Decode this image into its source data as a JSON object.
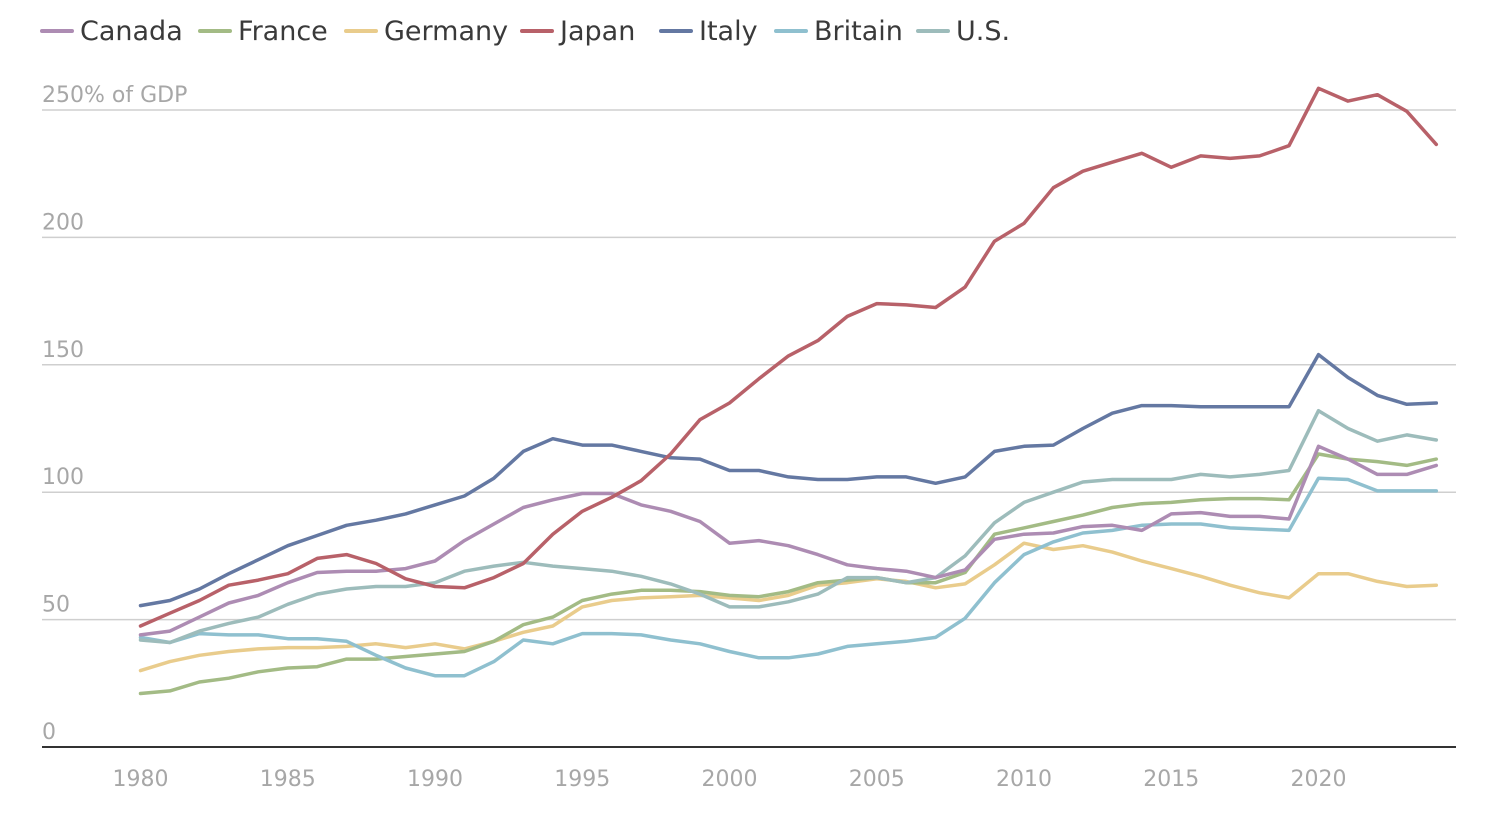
{
  "chart_data": {
    "type": "line",
    "title": "",
    "xlabel": "",
    "ylabel": "% of GDP",
    "y_unit_label": "250% of GDP",
    "xlim": [
      1977,
      2025
    ],
    "ylim": [
      0,
      250
    ],
    "x_ticks": [
      1980,
      1985,
      1990,
      1995,
      2000,
      2005,
      2010,
      2015,
      2020
    ],
    "x_tick_labels": [
      "1980",
      "1985",
      "1990",
      "1995",
      "2000",
      "2005",
      "2010",
      "2015",
      "2020"
    ],
    "y_ticks": [
      0,
      50,
      100,
      150,
      200,
      250
    ],
    "y_tick_labels": [
      "0",
      "50",
      "100",
      "150",
      "200",
      "250% of GDP"
    ],
    "grid": true,
    "legend_position": "top-left",
    "x": [
      1980,
      1981,
      1982,
      1983,
      1984,
      1985,
      1986,
      1987,
      1988,
      1989,
      1990,
      1991,
      1992,
      1993,
      1994,
      1995,
      1996,
      1997,
      1998,
      1999,
      2000,
      2001,
      2002,
      2003,
      2004,
      2005,
      2006,
      2007,
      2008,
      2009,
      2010,
      2011,
      2012,
      2013,
      2014,
      2015,
      2016,
      2017,
      2018,
      2019,
      2020,
      2021,
      2022,
      2023,
      2024
    ],
    "series": [
      {
        "name": "Canada",
        "color": "#ad8cb3",
        "values": [
          44,
          45.5,
          51,
          56.5,
          59.5,
          64.5,
          68.5,
          69,
          69,
          70,
          73,
          81,
          87.5,
          94,
          97,
          99.5,
          99.5,
          95,
          92.5,
          88.5,
          80,
          81,
          79,
          75.5,
          71.5,
          70,
          69,
          66.5,
          69.5,
          81.5,
          83.5,
          84,
          86.5,
          87,
          85,
          91.5,
          92,
          90.5,
          90.5,
          89.5,
          118,
          113,
          107,
          107,
          110.5
        ]
      },
      {
        "name": "France",
        "color": "#a3bb85",
        "values": [
          21,
          22,
          25.5,
          27,
          29.5,
          31,
          31.5,
          34.5,
          34.5,
          35.5,
          36.5,
          37.5,
          41.5,
          48,
          51,
          57.5,
          60,
          61.5,
          61.5,
          61,
          59.5,
          59,
          61,
          64.5,
          65.5,
          66.5,
          64.5,
          64.5,
          68.5,
          83.5,
          86,
          88.5,
          91,
          94,
          95.5,
          96,
          97,
          97.5,
          97.5,
          97,
          115,
          113,
          112,
          110.5,
          113
        ]
      },
      {
        "name": "Germany",
        "color": "#e9cc8c",
        "values": [
          30,
          33.5,
          36,
          37.5,
          38.5,
          39,
          39,
          39.5,
          40.5,
          39,
          40.5,
          38.5,
          41.5,
          45,
          47.5,
          55,
          57.5,
          58.5,
          59,
          59.5,
          58.5,
          57.5,
          59.5,
          63.5,
          64.5,
          66,
          65,
          62.5,
          64,
          71.5,
          80,
          77.5,
          79,
          76.5,
          73,
          70,
          67,
          63.5,
          60.5,
          58.5,
          68,
          68,
          65,
          63,
          63.5
        ]
      },
      {
        "name": "Japan",
        "color": "#b86169",
        "values": [
          47.5,
          52.5,
          57.5,
          63.5,
          65.5,
          68,
          74,
          75.5,
          72,
          66,
          63,
          62.5,
          66.5,
          72,
          83.5,
          92.5,
          98,
          104.5,
          115,
          128.5,
          135,
          144.5,
          153.5,
          159.5,
          169,
          174,
          173.5,
          172.5,
          180.5,
          198.5,
          205.5,
          219.5,
          226,
          229.5,
          233,
          227.5,
          232,
          231,
          232,
          236,
          258.5,
          253.5,
          256,
          249.5,
          236.5
        ]
      },
      {
        "name": "Italy",
        "color": "#6478a2",
        "values": [
          55.5,
          57.5,
          62,
          68,
          73.5,
          79,
          83,
          87,
          89,
          91.5,
          95,
          98.5,
          105.5,
          116,
          121,
          118.5,
          118.5,
          116,
          113.5,
          113,
          108.5,
          108.5,
          106,
          105,
          105,
          106,
          106,
          103.5,
          106,
          116,
          118,
          118.5,
          125,
          131,
          134,
          134,
          133.5,
          133.5,
          133.5,
          133.5,
          154,
          145,
          138,
          134.5,
          135
        ]
      },
      {
        "name": "Britain",
        "color": "#8fc0cf",
        "values": [
          43,
          41,
          44.5,
          44,
          44,
          42.5,
          42.5,
          41.5,
          36,
          31,
          28,
          28,
          33.5,
          42,
          40.5,
          44.5,
          44.5,
          44,
          42,
          40.5,
          37.5,
          35,
          35,
          36.5,
          39.5,
          40.5,
          41.5,
          43,
          50.5,
          64.5,
          75.5,
          80.5,
          84,
          85,
          87,
          87.5,
          87.5,
          86,
          85.5,
          85,
          105.5,
          105,
          100.5,
          100.5,
          100.5
        ]
      },
      {
        "name": "U.S.",
        "color": "#9dbcbb",
        "values": [
          42,
          41,
          45.5,
          48.5,
          51,
          56,
          60,
          62,
          63,
          63,
          64.5,
          69,
          71,
          72.5,
          71,
          70,
          69,
          67,
          64,
          60,
          55,
          55,
          57,
          60,
          66.5,
          66.5,
          64.5,
          66.5,
          75,
          88,
          96,
          100,
          104,
          105,
          105,
          105,
          107,
          106,
          107,
          108.5,
          132,
          125,
          120,
          122.5,
          120.5
        ]
      }
    ]
  }
}
